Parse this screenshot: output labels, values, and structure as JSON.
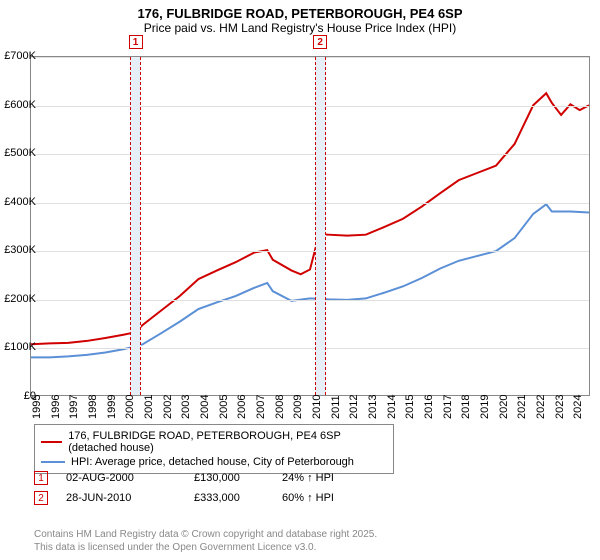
{
  "title_line1": "176, FULBRIDGE ROAD, PETERBOROUGH, PE4 6SP",
  "title_line2": "Price paid vs. HM Land Registry's House Price Index (HPI)",
  "chart": {
    "type": "line",
    "ylim": [
      0,
      700000
    ],
    "ytick_step": 100000,
    "ytick_labels": [
      "£0",
      "£100K",
      "£200K",
      "£300K",
      "£400K",
      "£500K",
      "£600K",
      "£700K"
    ],
    "xlim": [
      1995,
      2025
    ],
    "xticks": [
      1995,
      1996,
      1997,
      1998,
      1999,
      2000,
      2001,
      2002,
      2003,
      2004,
      2005,
      2006,
      2007,
      2008,
      2009,
      2010,
      2011,
      2012,
      2013,
      2014,
      2015,
      2016,
      2017,
      2018,
      2019,
      2020,
      2021,
      2022,
      2023,
      2024
    ],
    "background_color": "#ffffff",
    "grid_color": "#e0e0e0",
    "band_fill": "#e6eef8",
    "band_border": "#d00000",
    "series": [
      {
        "name": "176, FULBRIDGE ROAD, PETERBOROUGH, PE4 6SP (detached house)",
        "color": "#d00000",
        "line_width": 2,
        "points": [
          [
            1995,
            105000
          ],
          [
            1996,
            107000
          ],
          [
            1997,
            108000
          ],
          [
            1998,
            112000
          ],
          [
            1999,
            118000
          ],
          [
            2000,
            125000
          ],
          [
            2000.6,
            130000
          ],
          [
            2001,
            145000
          ],
          [
            2002,
            175000
          ],
          [
            2003,
            205000
          ],
          [
            2004,
            240000
          ],
          [
            2005,
            258000
          ],
          [
            2006,
            275000
          ],
          [
            2007,
            295000
          ],
          [
            2007.7,
            300000
          ],
          [
            2008,
            280000
          ],
          [
            2009,
            258000
          ],
          [
            2009.5,
            250000
          ],
          [
            2010,
            260000
          ],
          [
            2010.49,
            333000
          ],
          [
            2011,
            332000
          ],
          [
            2012,
            330000
          ],
          [
            2013,
            332000
          ],
          [
            2014,
            348000
          ],
          [
            2015,
            365000
          ],
          [
            2016,
            390000
          ],
          [
            2017,
            418000
          ],
          [
            2018,
            445000
          ],
          [
            2019,
            460000
          ],
          [
            2020,
            475000
          ],
          [
            2021,
            520000
          ],
          [
            2022,
            600000
          ],
          [
            2022.7,
            625000
          ],
          [
            2023,
            605000
          ],
          [
            2023.5,
            580000
          ],
          [
            2024,
            602000
          ],
          [
            2024.5,
            590000
          ],
          [
            2025,
            600000
          ]
        ]
      },
      {
        "name": "HPI: Average price, detached house, City of Peterborough",
        "color": "#5b8fd6",
        "line_width": 2,
        "points": [
          [
            1995,
            78000
          ],
          [
            1996,
            78000
          ],
          [
            1997,
            80000
          ],
          [
            1998,
            83000
          ],
          [
            1999,
            88000
          ],
          [
            2000,
            95000
          ],
          [
            2001,
            105000
          ],
          [
            2002,
            128000
          ],
          [
            2003,
            152000
          ],
          [
            2004,
            178000
          ],
          [
            2005,
            192000
          ],
          [
            2006,
            205000
          ],
          [
            2007,
            222000
          ],
          [
            2007.7,
            232000
          ],
          [
            2008,
            215000
          ],
          [
            2009,
            195000
          ],
          [
            2010,
            200000
          ],
          [
            2011,
            198000
          ],
          [
            2012,
            197000
          ],
          [
            2013,
            200000
          ],
          [
            2014,
            212000
          ],
          [
            2015,
            225000
          ],
          [
            2016,
            242000
          ],
          [
            2017,
            262000
          ],
          [
            2018,
            278000
          ],
          [
            2019,
            288000
          ],
          [
            2020,
            298000
          ],
          [
            2021,
            325000
          ],
          [
            2022,
            375000
          ],
          [
            2022.7,
            395000
          ],
          [
            2023,
            380000
          ],
          [
            2024,
            380000
          ],
          [
            2025,
            378000
          ]
        ]
      }
    ],
    "sale_markers": [
      {
        "idx": "1",
        "x": 2000.6,
        "y": 130000,
        "band": [
          2000.3,
          2000.9
        ]
      },
      {
        "idx": "2",
        "x": 2010.49,
        "y": 333000,
        "band": [
          2010.2,
          2010.8
        ]
      }
    ]
  },
  "legend": {
    "rows": [
      {
        "color": "#d00000",
        "label": "176, FULBRIDGE ROAD, PETERBOROUGH, PE4 6SP (detached house)"
      },
      {
        "color": "#5b8fd6",
        "label": "HPI: Average price, detached house, City of Peterborough"
      }
    ]
  },
  "sales_table": [
    {
      "idx": "1",
      "date": "02-AUG-2000",
      "price": "£130,000",
      "diff": "24% ↑ HPI"
    },
    {
      "idx": "2",
      "date": "28-JUN-2010",
      "price": "£333,000",
      "diff": "60% ↑ HPI"
    }
  ],
  "footer_line1": "Contains HM Land Registry data © Crown copyright and database right 2025.",
  "footer_line2": "This data is licensed under the Open Government Licence v3.0."
}
